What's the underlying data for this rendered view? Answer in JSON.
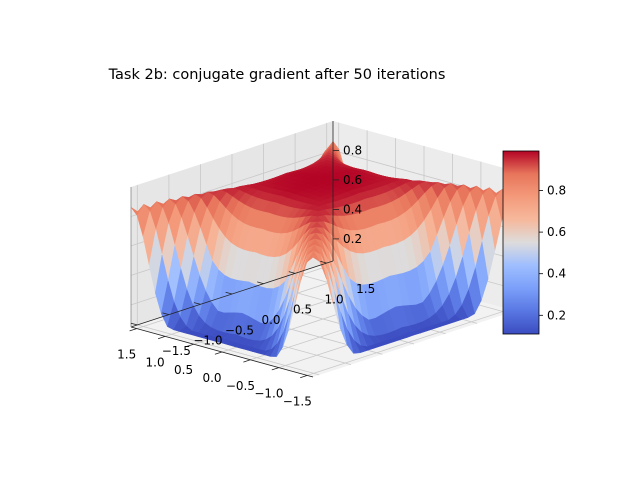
{
  "chart_data": {
    "type": "surface3d",
    "title": "Task 2b: conjugate gradient after 50 iterations",
    "xlabel": "",
    "ylabel": "",
    "zlabel": "",
    "x_ticks": [
      "−1.5",
      "−1.0",
      "−0.5",
      "0.0",
      "0.5",
      "1.0",
      "1.5"
    ],
    "y_ticks": [
      "−1.5",
      "−1.0",
      "−0.5",
      "0.0",
      "0.5",
      "1.0",
      "1.5"
    ],
    "z_ticks": [
      "0.2",
      "0.4",
      "0.6",
      "0.8"
    ],
    "xlim": [
      -1.6,
      1.6
    ],
    "ylim": [
      -1.6,
      1.6
    ],
    "zlim": [
      0.05,
      1.0
    ],
    "colormap": "coolwarm",
    "colorbar": {
      "ticks": [
        "0.2",
        "0.4",
        "0.6",
        "0.8"
      ],
      "range": [
        0.11,
        0.99
      ]
    },
    "surface_description": "saddle-like surface: value ~0.99 along the diagonals near (±0.6, ±0.6), dropping to ~0.1 at the midpoints of the four domain edges",
    "value_at_center": 0.72,
    "max_value": 0.99,
    "min_value": 0.11,
    "grid": true
  }
}
